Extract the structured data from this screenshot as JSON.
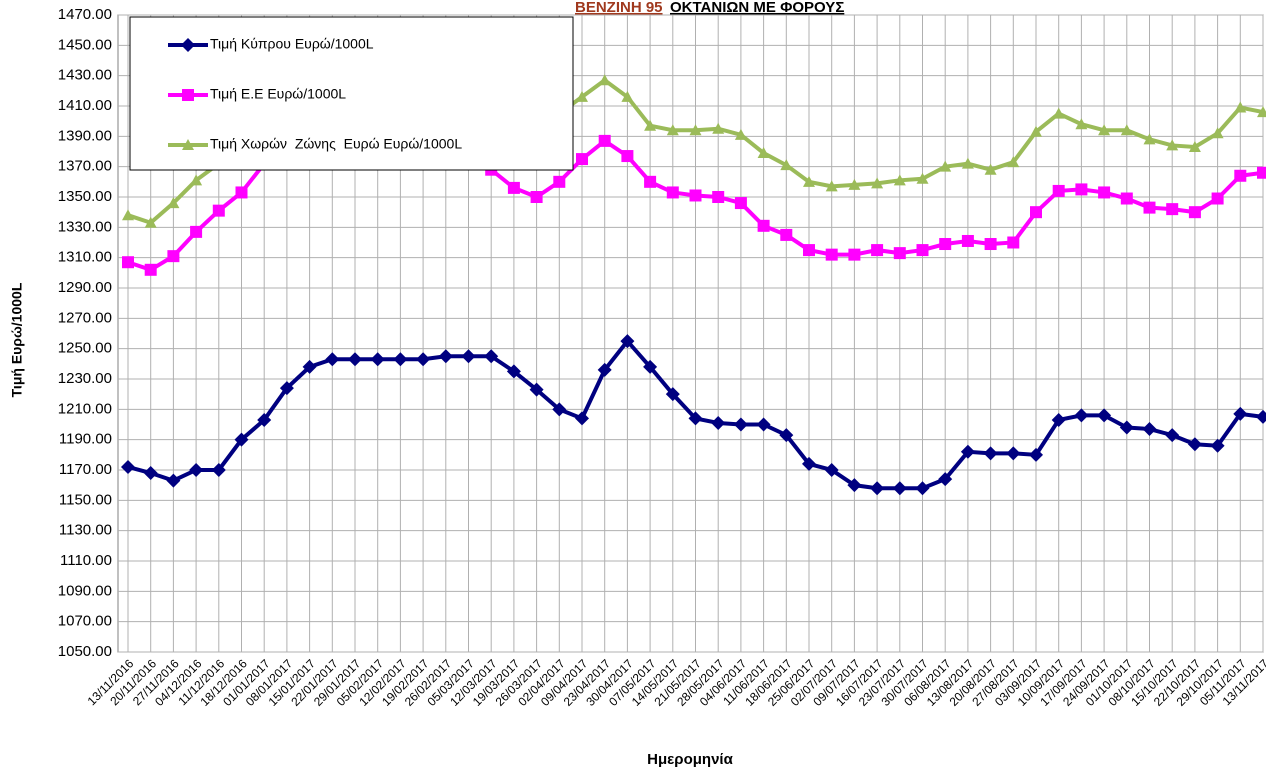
{
  "chart_data": {
    "type": "line",
    "title": "ΒΕΝΖΙΝΗ 95",
    "subtitle": "ΟΚΤΑΝΙΩΝ ΜΕ ΦΟΡΟΥΣ",
    "y_label": "Τιμή Ευρώ/1000L",
    "x_label": "Ημερομηνία",
    "categories": [
      "13/11/2016",
      "20/11/2016",
      "27/11/2016",
      "04/12/2016",
      "11/12/2016",
      "18/12/2016",
      "01/01/2017",
      "08/01/2017",
      "15/01/2017",
      "22/01/2017",
      "29/01/2017",
      "05/02/2017",
      "12/02/2017",
      "19/02/2017",
      "26/02/2017",
      "05/03/2017",
      "12/03/2017",
      "19/03/2017",
      "26/03/2017",
      "02/04/2017",
      "09/04/2017",
      "23/04/2017",
      "30/04/2017",
      "07/05/2017",
      "14/05/2017",
      "21/05/2017",
      "28/05/2017",
      "04/06/2017",
      "11/06/2017",
      "18/06/2017",
      "25/06/2017",
      "02/07/2017",
      "09/07/2017",
      "16/07/2017",
      "23/07/2017",
      "30/07/2017",
      "06/08/2017",
      "13/08/2017",
      "20/08/2017",
      "27/08/2017",
      "03/09/2017",
      "10/09/2017",
      "17/09/2017",
      "24/09/2017",
      "01/10/2017",
      "08/10/2017",
      "15/10/2017",
      "22/10/2017",
      "29/10/2017",
      "05/11/2017",
      "13/11/2017"
    ],
    "series": [
      {
        "name": "Τιμή Κύπρου Ευρώ/1000L",
        "color": "#000080",
        "marker": "diamond",
        "values": [
          1172,
          1168,
          1163,
          1170,
          1170,
          1190,
          1203,
          1224,
          1238,
          1243,
          1243,
          1243,
          1243,
          1243,
          1245,
          1245,
          1245,
          1235,
          1223,
          1210,
          1204,
          1236,
          1255,
          1238,
          1220,
          1204,
          1201,
          1200,
          1200,
          1193,
          1174,
          1170,
          1160,
          1158,
          1158,
          1158,
          1164,
          1182,
          1181,
          1181,
          1180,
          1203,
          1206,
          1206,
          1198,
          1197,
          1193,
          1187,
          1186,
          1207,
          1205
        ]
      },
      {
        "name": "Τιμή Ε.Ε Ευρώ/1000L",
        "color": "#ff00ff",
        "marker": "square",
        "values": [
          1307,
          1302,
          1311,
          1327,
          1341,
          1353,
          1372,
          1385,
          1395,
          1398,
          1398,
          1398,
          1398,
          1400,
          1400,
          1385,
          1368,
          1356,
          1350,
          1360,
          1375,
          1387,
          1377,
          1360,
          1353,
          1351,
          1350,
          1346,
          1331,
          1325,
          1315,
          1312,
          1312,
          1315,
          1313,
          1315,
          1319,
          1321,
          1319,
          1320,
          1340,
          1354,
          1355,
          1353,
          1349,
          1343,
          1342,
          1340,
          1349,
          1364,
          1366
        ]
      },
      {
        "name": "Τιμή Χωρών  Ζώνης  Ευρώ Ευρώ/1000L",
        "color": "#9bbb59",
        "marker": "triangle",
        "values": [
          1338,
          1333,
          1346,
          1361,
          1372,
          1383,
          1395,
          1405,
          1415,
          1418,
          1418,
          1418,
          1418,
          1420,
          1420,
          1410,
          1400,
          1395,
          1393,
          1405,
          1416,
          1427,
          1416,
          1397,
          1394,
          1394,
          1395,
          1391,
          1379,
          1371,
          1360,
          1357,
          1358,
          1359,
          1361,
          1362,
          1370,
          1372,
          1368,
          1373,
          1393,
          1405,
          1398,
          1394,
          1394,
          1388,
          1384,
          1383,
          1392,
          1409,
          1406
        ]
      }
    ],
    "ylim": [
      1050,
      1470
    ],
    "yticks": [
      {
        "value": 1050,
        "label": "1050.00"
      },
      {
        "value": 1070,
        "label": "1070.00"
      },
      {
        "value": 1090,
        "label": "1090.00"
      },
      {
        "value": 1110,
        "label": "1110.00"
      },
      {
        "value": 1130,
        "label": "1130.00"
      },
      {
        "value": 1150,
        "label": "1150.00"
      },
      {
        "value": 1170,
        "label": "1170.00"
      },
      {
        "value": 1190,
        "label": "1190.00"
      },
      {
        "value": 1210,
        "label": "1210.00"
      },
      {
        "value": 1230,
        "label": "1230.00"
      },
      {
        "value": 1250,
        "label": "1250.00"
      },
      {
        "value": 1270,
        "label": "1270.00"
      },
      {
        "value": 1290,
        "label": "1290.00"
      },
      {
        "value": 1310,
        "label": "1310.00"
      },
      {
        "value": 1330,
        "label": "1330.00"
      },
      {
        "value": 1350,
        "label": "1350.00"
      },
      {
        "value": 1370,
        "label": "1370.00"
      },
      {
        "value": 1390,
        "label": "1390.00"
      },
      {
        "value": 1410,
        "label": "1410.00"
      },
      {
        "value": 1430,
        "label": "1430.00"
      },
      {
        "value": 1450,
        "label": "1450.00"
      },
      {
        "value": 1470,
        "label": "1470.00"
      }
    ],
    "grid": true,
    "legend": "upper left"
  }
}
